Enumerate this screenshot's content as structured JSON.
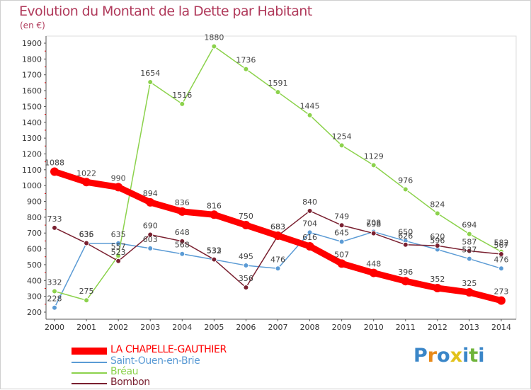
{
  "title": "Evolution du Montant de la Dette par Habitant",
  "unit": "(en €)",
  "logo": [
    "P",
    "r",
    "o",
    "x",
    "i",
    "t",
    "i"
  ],
  "logo_colors": [
    "#3a86c8",
    "#e88a1a",
    "#3a86c8",
    "#e2c21a",
    "#3a86c8",
    "#6fb43a",
    "#3a86c8"
  ],
  "chart_data": {
    "type": "line",
    "x": [
      2000,
      2001,
      2002,
      2003,
      2004,
      2005,
      2006,
      2007,
      2008,
      2009,
      2010,
      2011,
      2012,
      2013,
      2014
    ],
    "ylim": [
      200,
      1900
    ],
    "yticks": [
      200,
      300,
      400,
      500,
      600,
      700,
      800,
      900,
      1000,
      1100,
      1200,
      1300,
      1400,
      1500,
      1600,
      1700,
      1800,
      1900
    ],
    "grid": false,
    "legend_position": "bottom-left",
    "series": [
      {
        "name": "LA CHAPELLE-GAUTHIER",
        "color": "#ff0000",
        "values": [
          1088,
          1022,
          990,
          894,
          836,
          816,
          750,
          683,
          616,
          507,
          448,
          396,
          352,
          325,
          273
        ]
      },
      {
        "name": "Saint-Ouen-en-Brie",
        "color": "#5b9bd5",
        "values": [
          228,
          635,
          635,
          603,
          568,
          532,
          495,
          476,
          704,
          645,
          708,
          650,
          596,
          537,
          476
        ]
      },
      {
        "name": "Bréau",
        "color": "#8cd24c",
        "values": [
          332,
          275,
          557,
          1654,
          1516,
          1880,
          1736,
          1591,
          1445,
          1254,
          1129,
          976,
          824,
          694,
          582
        ]
      },
      {
        "name": "Bombon",
        "color": "#7a2030",
        "values": [
          733,
          636,
          523,
          690,
          648,
          533,
          356,
          683,
          840,
          749,
          698,
          626,
          620,
          587,
          567
        ]
      }
    ]
  }
}
